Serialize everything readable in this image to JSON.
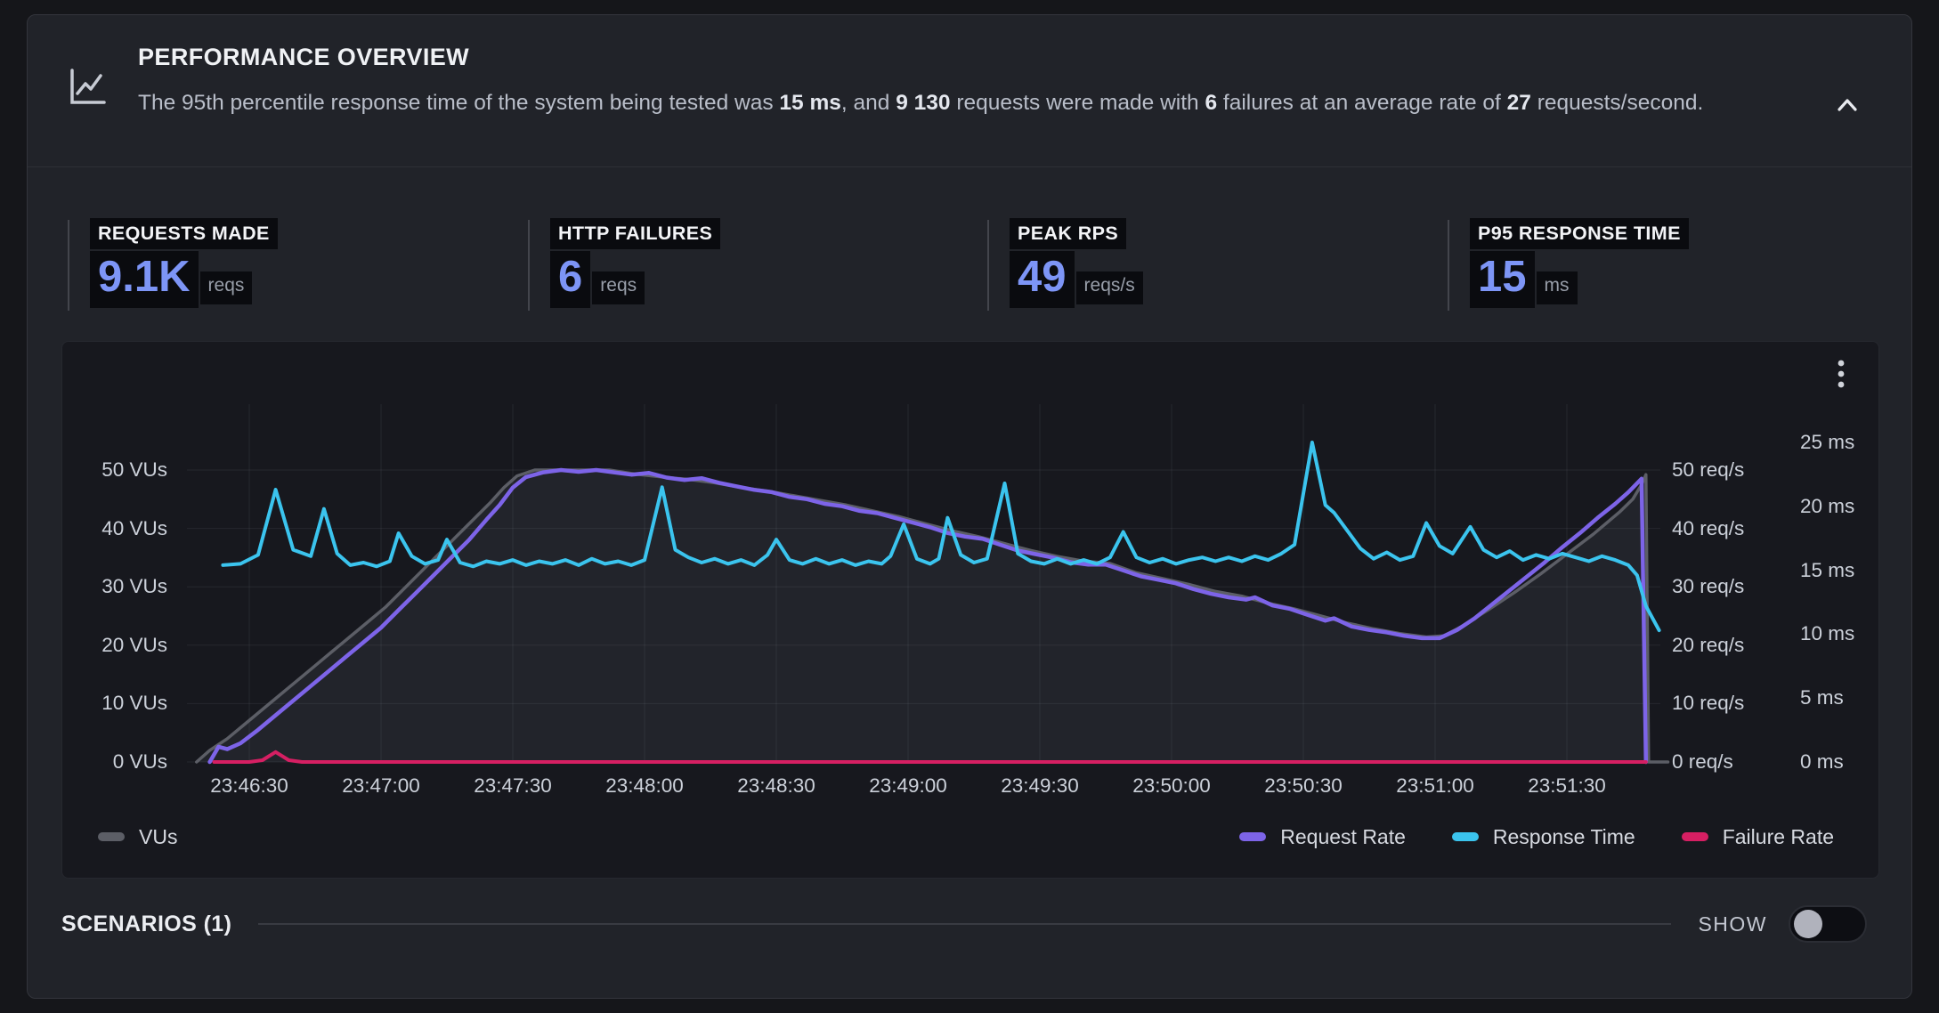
{
  "header": {
    "title": "PERFORMANCE OVERVIEW",
    "summary_segments": [
      {
        "text": "The 95th percentile response time of the system being tested was ",
        "bold": false
      },
      {
        "text": "15 ms",
        "bold": true
      },
      {
        "text": ", and ",
        "bold": false
      },
      {
        "text": "9 130",
        "bold": true
      },
      {
        "text": " requests were made with ",
        "bold": false
      },
      {
        "text": "6",
        "bold": true
      },
      {
        "text": " failures at an average rate of ",
        "bold": false
      },
      {
        "text": "27",
        "bold": true
      },
      {
        "text": " requests/second.",
        "bold": false
      }
    ]
  },
  "colors": {
    "stat_value_accent": "#7d95f6",
    "card_background": "#212329",
    "chart_background": "#17181e",
    "highlight_box": "#0a0b0f"
  },
  "stats": [
    {
      "label": "REQUESTS MADE",
      "value": "9.1K",
      "unit": "reqs"
    },
    {
      "label": "HTTP FAILURES",
      "value": "6",
      "unit": "reqs"
    },
    {
      "label": "PEAK RPS",
      "value": "49",
      "unit": "reqs/s"
    },
    {
      "label": "P95 RESPONSE TIME",
      "value": "15",
      "unit": "ms"
    }
  ],
  "scenarios": {
    "label": "SCENARIOS (1)",
    "show_label": "SHOW",
    "toggle_on": false
  },
  "chart_data": {
    "type": "line",
    "grid": true,
    "grid_color": "rgba(208,214,228,0.08)",
    "x_axis": {
      "unit": "time",
      "tick_labels": [
        "23:46:30",
        "23:47:00",
        "23:47:30",
        "23:48:00",
        "23:48:30",
        "23:49:00",
        "23:49:30",
        "23:50:00",
        "23:50:30",
        "23:51:00",
        "23:51:30"
      ],
      "tick_seconds": [
        30,
        60,
        90,
        120,
        150,
        180,
        210,
        240,
        270,
        300,
        330
      ]
    },
    "y_axis_left": {
      "unit": "VUs",
      "max": 50,
      "tick_labels": [
        "50 VUs",
        "40 VUs",
        "30 VUs",
        "20 VUs",
        "10 VUs",
        "0 VUs"
      ],
      "tick_values": [
        50,
        40,
        30,
        20,
        10,
        0
      ]
    },
    "y_axis_right_req": {
      "unit": "req/s",
      "max": 50,
      "tick_labels": [
        "50 req/s",
        "40 req/s",
        "30 req/s",
        "20 req/s",
        "10 req/s",
        "0 req/s"
      ],
      "tick_values": [
        50,
        40,
        30,
        20,
        10,
        0
      ]
    },
    "y_axis_right_ms": {
      "unit": "ms",
      "max": 25,
      "tick_labels": [
        "25 ms",
        "20 ms",
        "15 ms",
        "10 ms",
        "5 ms",
        "0 ms"
      ],
      "tick_values": [
        25,
        20,
        15,
        10,
        5,
        0
      ]
    },
    "legend_left": [
      {
        "label": "VUs",
        "color": "#5c5e66"
      }
    ],
    "legend_right": [
      {
        "label": "Request Rate",
        "color": "#7d64e8"
      },
      {
        "label": "Response Time",
        "color": "#3bc4ee"
      },
      {
        "label": "Failure Rate",
        "color": "#d61f63"
      }
    ],
    "series": [
      {
        "id": "vus",
        "name": "VUs",
        "axis": "vu",
        "color": "#5c5e66",
        "width": 3.5,
        "fill": "rgba(200,208,222,0.065)",
        "points": [
          [
            18,
            0
          ],
          [
            21,
            2
          ],
          [
            25,
            4
          ],
          [
            29,
            6.5
          ],
          [
            33,
            9
          ],
          [
            37,
            11.5
          ],
          [
            41,
            14
          ],
          [
            45,
            16.5
          ],
          [
            49,
            19
          ],
          [
            53,
            21.5
          ],
          [
            57,
            24
          ],
          [
            61,
            26.5
          ],
          [
            65,
            29.5
          ],
          [
            69,
            32.5
          ],
          [
            73,
            35.5
          ],
          [
            77,
            38.5
          ],
          [
            81,
            41.5
          ],
          [
            85,
            44.5
          ],
          [
            88,
            47
          ],
          [
            91,
            49
          ],
          [
            95,
            50
          ],
          [
            112,
            50
          ],
          [
            118,
            49.3
          ],
          [
            124,
            48.8
          ],
          [
            130,
            48.4
          ],
          [
            136,
            47.8
          ],
          [
            142,
            47
          ],
          [
            148,
            46.4
          ],
          [
            154,
            45.6
          ],
          [
            160,
            44.8
          ],
          [
            166,
            44
          ],
          [
            172,
            43
          ],
          [
            178,
            42
          ],
          [
            184,
            40.8
          ],
          [
            190,
            39.6
          ],
          [
            196,
            38.6
          ],
          [
            202,
            37.4
          ],
          [
            208,
            36.2
          ],
          [
            214,
            35.2
          ],
          [
            220,
            34.4
          ],
          [
            226,
            34
          ],
          [
            232,
            32.4
          ],
          [
            238,
            31.4
          ],
          [
            244,
            30.4
          ],
          [
            250,
            29.2
          ],
          [
            256,
            28.4
          ],
          [
            262,
            27.2
          ],
          [
            268,
            26.2
          ],
          [
            274,
            25
          ],
          [
            280,
            23.8
          ],
          [
            286,
            22.8
          ],
          [
            292,
            22
          ],
          [
            298,
            21.4
          ],
          [
            302,
            21.6
          ],
          [
            306,
            23.2
          ],
          [
            312,
            26
          ],
          [
            318,
            29
          ],
          [
            324,
            32.2
          ],
          [
            330,
            35.6
          ],
          [
            336,
            39
          ],
          [
            342,
            42.8
          ],
          [
            345,
            45
          ],
          [
            347,
            47.5
          ],
          [
            348,
            49.2
          ],
          [
            348.6,
            0
          ],
          [
            353,
            0
          ]
        ]
      },
      {
        "id": "request_rate",
        "name": "Request Rate",
        "axis": "vu",
        "color": "#7d64e8",
        "width": 4.5,
        "points": [
          [
            21,
            0
          ],
          [
            23,
            2.6
          ],
          [
            25,
            2.2
          ],
          [
            28,
            3.2
          ],
          [
            32,
            5.5
          ],
          [
            36,
            8
          ],
          [
            40,
            10.5
          ],
          [
            44,
            13
          ],
          [
            48,
            15.5
          ],
          [
            52,
            18
          ],
          [
            56,
            20.5
          ],
          [
            60,
            23
          ],
          [
            64,
            26
          ],
          [
            68,
            29
          ],
          [
            72,
            32
          ],
          [
            76,
            35
          ],
          [
            80,
            38
          ],
          [
            84,
            41.5
          ],
          [
            87,
            44
          ],
          [
            90,
            47
          ],
          [
            93,
            48.8
          ],
          [
            97,
            49.6
          ],
          [
            101,
            50
          ],
          [
            105,
            49.7
          ],
          [
            109,
            50
          ],
          [
            113,
            49.6
          ],
          [
            117,
            49.2
          ],
          [
            121,
            49.5
          ],
          [
            125,
            48.7
          ],
          [
            129,
            48.3
          ],
          [
            133,
            48.6
          ],
          [
            137,
            47.8
          ],
          [
            141,
            47.2
          ],
          [
            145,
            46.6
          ],
          [
            149,
            46.2
          ],
          [
            153,
            45.4
          ],
          [
            157,
            45
          ],
          [
            161,
            44.2
          ],
          [
            165,
            43.8
          ],
          [
            169,
            43
          ],
          [
            173,
            42.6
          ],
          [
            177,
            41.8
          ],
          [
            181,
            41
          ],
          [
            185,
            40.2
          ],
          [
            189,
            39.2
          ],
          [
            193,
            38.6
          ],
          [
            197,
            38.2
          ],
          [
            201,
            37.2
          ],
          [
            205,
            36.2
          ],
          [
            209,
            35.6
          ],
          [
            213,
            35
          ],
          [
            217,
            34.2
          ],
          [
            221,
            33.8
          ],
          [
            225,
            33.8
          ],
          [
            229,
            32.8
          ],
          [
            233,
            31.8
          ],
          [
            237,
            31.2
          ],
          [
            241,
            30.6
          ],
          [
            245,
            29.6
          ],
          [
            249,
            28.8
          ],
          [
            253,
            28.2
          ],
          [
            257,
            27.8
          ],
          [
            259,
            28.2
          ],
          [
            263,
            26.8
          ],
          [
            267,
            26.2
          ],
          [
            271,
            25.2
          ],
          [
            275,
            24.2
          ],
          [
            277,
            24.6
          ],
          [
            281,
            23.2
          ],
          [
            285,
            22.6
          ],
          [
            289,
            22.2
          ],
          [
            293,
            21.6
          ],
          [
            297,
            21.2
          ],
          [
            301,
            21.2
          ],
          [
            305,
            22.6
          ],
          [
            309,
            24.6
          ],
          [
            313,
            27
          ],
          [
            317,
            29.4
          ],
          [
            321,
            31.8
          ],
          [
            325,
            34.2
          ],
          [
            329,
            36.8
          ],
          [
            333,
            39.2
          ],
          [
            337,
            41.8
          ],
          [
            341,
            44.2
          ],
          [
            344,
            46.2
          ],
          [
            347,
            48.5
          ],
          [
            348,
            0
          ]
        ]
      },
      {
        "id": "response_time",
        "name": "Response Time",
        "axis": "ms",
        "color": "#3bc4ee",
        "width": 4,
        "points": [
          [
            24,
            15.4
          ],
          [
            28,
            15.5
          ],
          [
            32,
            16.2
          ],
          [
            36,
            21.3
          ],
          [
            40,
            16.6
          ],
          [
            44,
            16.1
          ],
          [
            47,
            19.8
          ],
          [
            50,
            16.3
          ],
          [
            53,
            15.4
          ],
          [
            56,
            15.6
          ],
          [
            59,
            15.3
          ],
          [
            62,
            15.7
          ],
          [
            64,
            17.9
          ],
          [
            67,
            16.1
          ],
          [
            70,
            15.5
          ],
          [
            73,
            15.8
          ],
          [
            75,
            17.4
          ],
          [
            78,
            15.6
          ],
          [
            81,
            15.3
          ],
          [
            84,
            15.7
          ],
          [
            87,
            15.5
          ],
          [
            90,
            15.8
          ],
          [
            93,
            15.4
          ],
          [
            96,
            15.7
          ],
          [
            99,
            15.5
          ],
          [
            102,
            15.8
          ],
          [
            105,
            15.4
          ],
          [
            108,
            15.9
          ],
          [
            111,
            15.5
          ],
          [
            114,
            15.7
          ],
          [
            117,
            15.4
          ],
          [
            120,
            15.8
          ],
          [
            124,
            21.5
          ],
          [
            127,
            16.6
          ],
          [
            130,
            16
          ],
          [
            133,
            15.6
          ],
          [
            136,
            15.9
          ],
          [
            139,
            15.5
          ],
          [
            142,
            15.8
          ],
          [
            145,
            15.4
          ],
          [
            148,
            16.2
          ],
          [
            150,
            17.4
          ],
          [
            153,
            15.8
          ],
          [
            156,
            15.5
          ],
          [
            159,
            15.9
          ],
          [
            162,
            15.5
          ],
          [
            165,
            15.8
          ],
          [
            168,
            15.4
          ],
          [
            171,
            15.7
          ],
          [
            174,
            15.5
          ],
          [
            176,
            16.1
          ],
          [
            179,
            18.6
          ],
          [
            182,
            15.9
          ],
          [
            185,
            15.5
          ],
          [
            187,
            15.9
          ],
          [
            189,
            19.1
          ],
          [
            192,
            16.2
          ],
          [
            195,
            15.6
          ],
          [
            198,
            15.9
          ],
          [
            202,
            21.8
          ],
          [
            205,
            16.3
          ],
          [
            208,
            15.7
          ],
          [
            211,
            15.5
          ],
          [
            214,
            15.9
          ],
          [
            217,
            15.5
          ],
          [
            220,
            15.8
          ],
          [
            223,
            15.5
          ],
          [
            226,
            16
          ],
          [
            229,
            18
          ],
          [
            232,
            16
          ],
          [
            235,
            15.6
          ],
          [
            238,
            15.9
          ],
          [
            241,
            15.5
          ],
          [
            244,
            15.8
          ],
          [
            247,
            16
          ],
          [
            250,
            15.7
          ],
          [
            253,
            16
          ],
          [
            256,
            15.7
          ],
          [
            259,
            16.1
          ],
          [
            262,
            15.8
          ],
          [
            265,
            16.3
          ],
          [
            268,
            17
          ],
          [
            272,
            25
          ],
          [
            275,
            20.1
          ],
          [
            277,
            19.5
          ],
          [
            280,
            18.1
          ],
          [
            283,
            16.7
          ],
          [
            286,
            15.9
          ],
          [
            289,
            16.4
          ],
          [
            292,
            15.8
          ],
          [
            295,
            16.1
          ],
          [
            298,
            18.7
          ],
          [
            301,
            16.9
          ],
          [
            304,
            16.3
          ],
          [
            308,
            18.4
          ],
          [
            311,
            16.6
          ],
          [
            314,
            16
          ],
          [
            317,
            16.5
          ],
          [
            320,
            15.8
          ],
          [
            323,
            16.2
          ],
          [
            326,
            15.9
          ],
          [
            329,
            16.3
          ],
          [
            332,
            16
          ],
          [
            335,
            15.7
          ],
          [
            338,
            16.1
          ],
          [
            341,
            15.8
          ],
          [
            344,
            15.4
          ],
          [
            346,
            14.6
          ],
          [
            348,
            12.2
          ],
          [
            351,
            10.3
          ]
        ]
      },
      {
        "id": "failure_rate",
        "name": "Failure Rate",
        "axis": "vu",
        "color": "#d61f63",
        "width": 4,
        "points": [
          [
            22,
            0
          ],
          [
            30,
            0
          ],
          [
            33,
            0.3
          ],
          [
            36,
            1.7
          ],
          [
            39,
            0.3
          ],
          [
            42,
            0
          ],
          [
            348,
            0
          ]
        ]
      }
    ]
  }
}
